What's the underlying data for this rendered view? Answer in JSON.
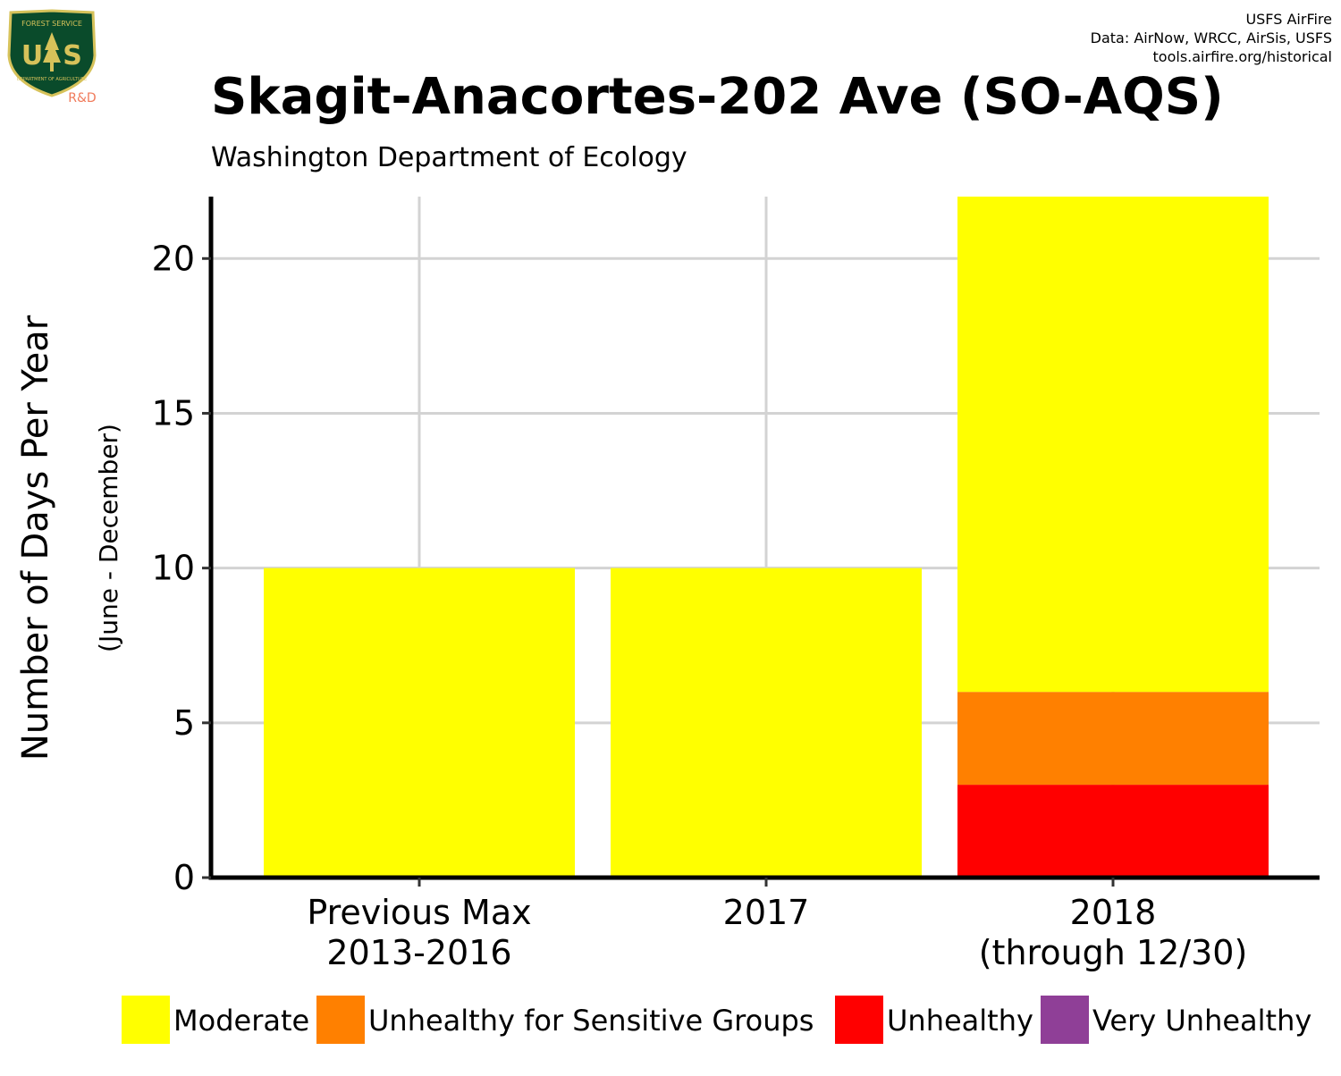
{
  "logo": {
    "agency_text": "FOREST SERVICE",
    "letters_left": "U",
    "letters_right": "S",
    "department_text": "DEPARTMENT OF AGRICULTURE",
    "rd_label": "R&D",
    "shield_color": "#0a4b2b",
    "shield_trim_color": "#d6c25a",
    "rd_color": "#f07a5a"
  },
  "credits": {
    "line1": "USFS AirFire",
    "line2": "Data: AirNow, WRCC, AirSis, USFS",
    "line3": "tools.airfire.org/historical"
  },
  "chart_data": {
    "type": "bar",
    "stacked": true,
    "title": "Skagit-Anacortes-202 Ave (SO-AQS)",
    "subtitle": "Washington Department of Ecology",
    "ylabel": "Number of Days Per Year",
    "ylabel_sub": "(June - December)",
    "xlabel": "",
    "categories": [
      [
        "Previous Max",
        "2013-2016"
      ],
      [
        "2017"
      ],
      [
        "2018",
        "(through 12/30)"
      ]
    ],
    "ylim": [
      0,
      22
    ],
    "yticks": [
      0,
      5,
      10,
      15,
      20
    ],
    "grid": true,
    "legend_position": "bottom",
    "series": [
      {
        "name": "Unhealthy",
        "color": "#ff0000",
        "values": [
          0,
          0,
          3
        ]
      },
      {
        "name": "Unhealthy for Sensitive Groups",
        "color": "#ff8000",
        "values": [
          0,
          0,
          3
        ]
      },
      {
        "name": "Moderate",
        "color": "#ffff00",
        "values": [
          10,
          10,
          16
        ]
      },
      {
        "name": "Very Unhealthy",
        "color": "#8f3f97",
        "values": [
          0,
          0,
          0
        ]
      }
    ],
    "legend_order": [
      "Moderate",
      "Unhealthy for Sensitive Groups",
      "Unhealthy",
      "Very Unhealthy"
    ]
  }
}
